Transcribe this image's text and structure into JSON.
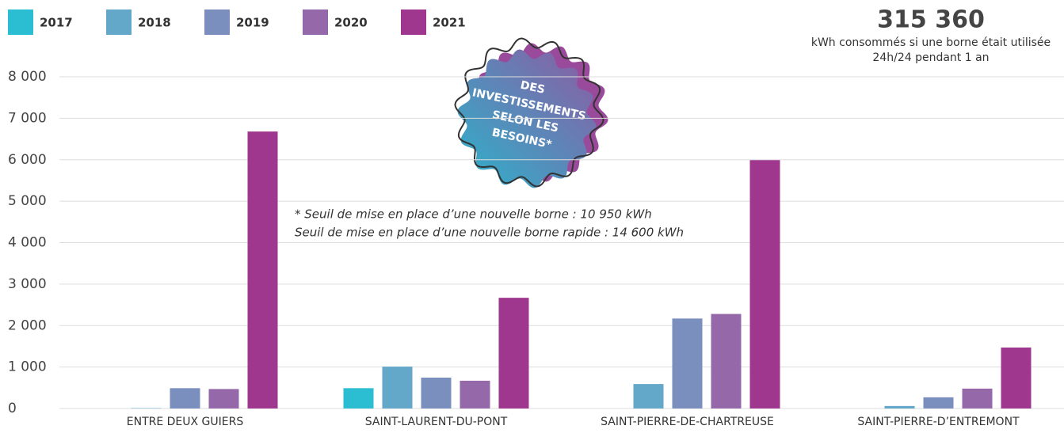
{
  "chart_data": {
    "type": "bar",
    "headline": "315 360",
    "headline_caption": [
      "kWh consommés si une borne était utilisée",
      "24h/24 pendant 1 an"
    ],
    "badge": [
      "DES",
      "INVESTISSEMENTS",
      "SELON LES",
      "BESOINS*"
    ],
    "footnote": [
      "* Seuil de mise en place d’une  nouvelle borne : 10 950 kWh",
      "Seuil de mise en place d’une nouvelle borne rapide : 14 600 kWh"
    ],
    "categories": [
      "ENTRE DEUX GUIERS",
      "SAINT-LAURENT-DU-PONT",
      "SAINT-PIERRE-DE-CHARTREUSE",
      "SAINT-PIERRE-D’ENTREMONT"
    ],
    "series": [
      {
        "name": "2017",
        "color": "#2bbdd1",
        "values": [
          0,
          490,
          0,
          0
        ]
      },
      {
        "name": "2018",
        "color": "#63a7c9",
        "values": [
          10,
          1010,
          590,
          60
        ]
      },
      {
        "name": "2019",
        "color": "#7a8fbe",
        "values": [
          490,
          745,
          2170,
          270
        ]
      },
      {
        "name": "2020",
        "color": "#9468a9",
        "values": [
          470,
          670,
          2280,
          480
        ]
      },
      {
        "name": "2021",
        "color": "#9e378d",
        "values": [
          6680,
          2670,
          5990,
          1470
        ]
      }
    ],
    "ylim": [
      0,
      8000
    ],
    "yticks": [
      0,
      {
        "value": 1000,
        "label": "1 000"
      },
      {
        "value": 2000,
        "label": "2 000"
      },
      {
        "value": 3000,
        "label": "3 000"
      },
      {
        "value": 4000,
        "label": "4 000"
      },
      {
        "value": 5000,
        "label": "5 000"
      },
      {
        "value": 6000,
        "label": "6 000"
      },
      {
        "value": 7000,
        "label": "7 000"
      },
      {
        "value": 8000,
        "label": "8 000"
      }
    ],
    "grid": true,
    "legend": "top-left"
  }
}
